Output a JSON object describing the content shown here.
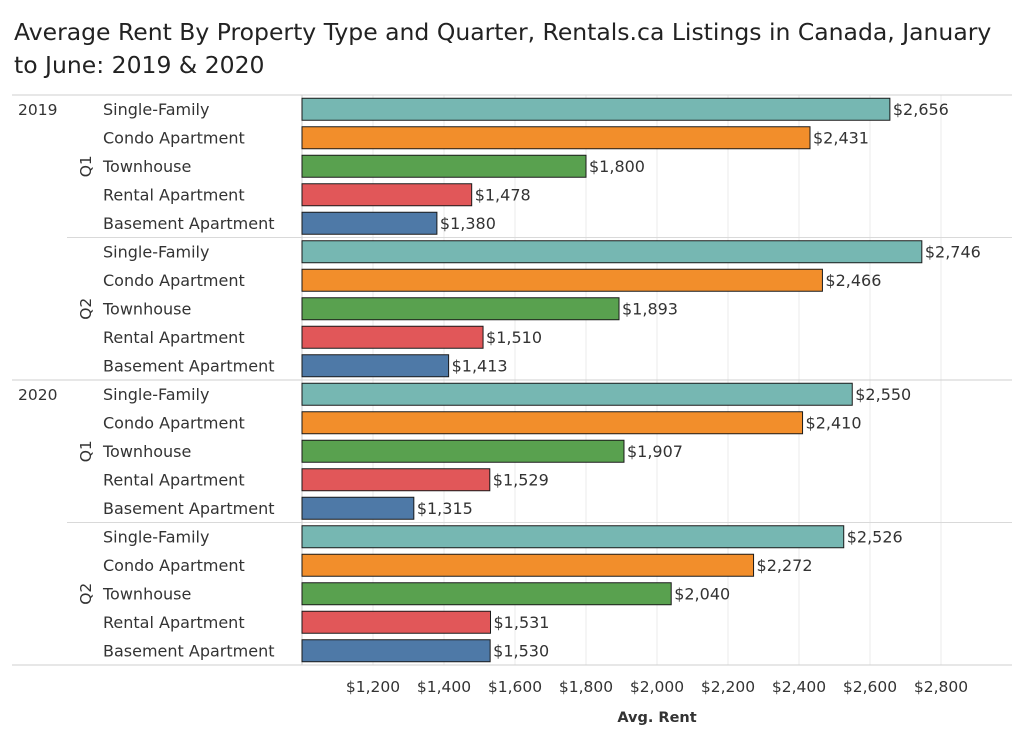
{
  "title": "Average Rent By Property Type and Quarter, Rentals.ca Listings in Canada, January to June: 2019 & 2020",
  "chart_data": {
    "type": "bar",
    "orientation": "horizontal",
    "title": "Average Rent By Property Type and Quarter, Rentals.ca Listings in Canada, January to June: 2019 & 2020",
    "xlabel": "Avg. Rent",
    "ylabel": "",
    "xlim": [
      1000,
      3000
    ],
    "x_ticks": [
      1200,
      1400,
      1600,
      1800,
      2000,
      2200,
      2400,
      2600,
      2800
    ],
    "x_tick_labels": [
      "$1,200",
      "$1,400",
      "$1,600",
      "$1,800",
      "$2,000",
      "$2,200",
      "$2,400",
      "$2,600",
      "$2,800"
    ],
    "grid": true,
    "legend": "none",
    "categories": [
      "Single-Family",
      "Condo Apartment",
      "Townhouse",
      "Rental Apartment",
      "Basement Apartment"
    ],
    "colors": {
      "Single-Family": "#76b7b2",
      "Condo Apartment": "#f28e2b",
      "Townhouse": "#59a14f",
      "Rental Apartment": "#e15759",
      "Basement Apartment": "#4e79a7"
    },
    "groups": [
      {
        "year": "2019",
        "quarter": "Q1",
        "values": [
          2656,
          2431,
          1800,
          1478,
          1380
        ],
        "labels": [
          "$2,656",
          "$2,431",
          "$1,800",
          "$1,478",
          "$1,380"
        ]
      },
      {
        "year": "2019",
        "quarter": "Q2",
        "values": [
          2746,
          2466,
          1893,
          1510,
          1413
        ],
        "labels": [
          "$2,746",
          "$2,466",
          "$1,893",
          "$1,510",
          "$1,413"
        ]
      },
      {
        "year": "2020",
        "quarter": "Q1",
        "values": [
          2550,
          2410,
          1907,
          1529,
          1315
        ],
        "labels": [
          "$2,550",
          "$2,410",
          "$1,907",
          "$1,529",
          "$1,315"
        ]
      },
      {
        "year": "2020",
        "quarter": "Q2",
        "values": [
          2526,
          2272,
          2040,
          1531,
          1530
        ],
        "labels": [
          "$2,526",
          "$2,272",
          "$2,040",
          "$1,531",
          "$1,530"
        ]
      }
    ]
  }
}
